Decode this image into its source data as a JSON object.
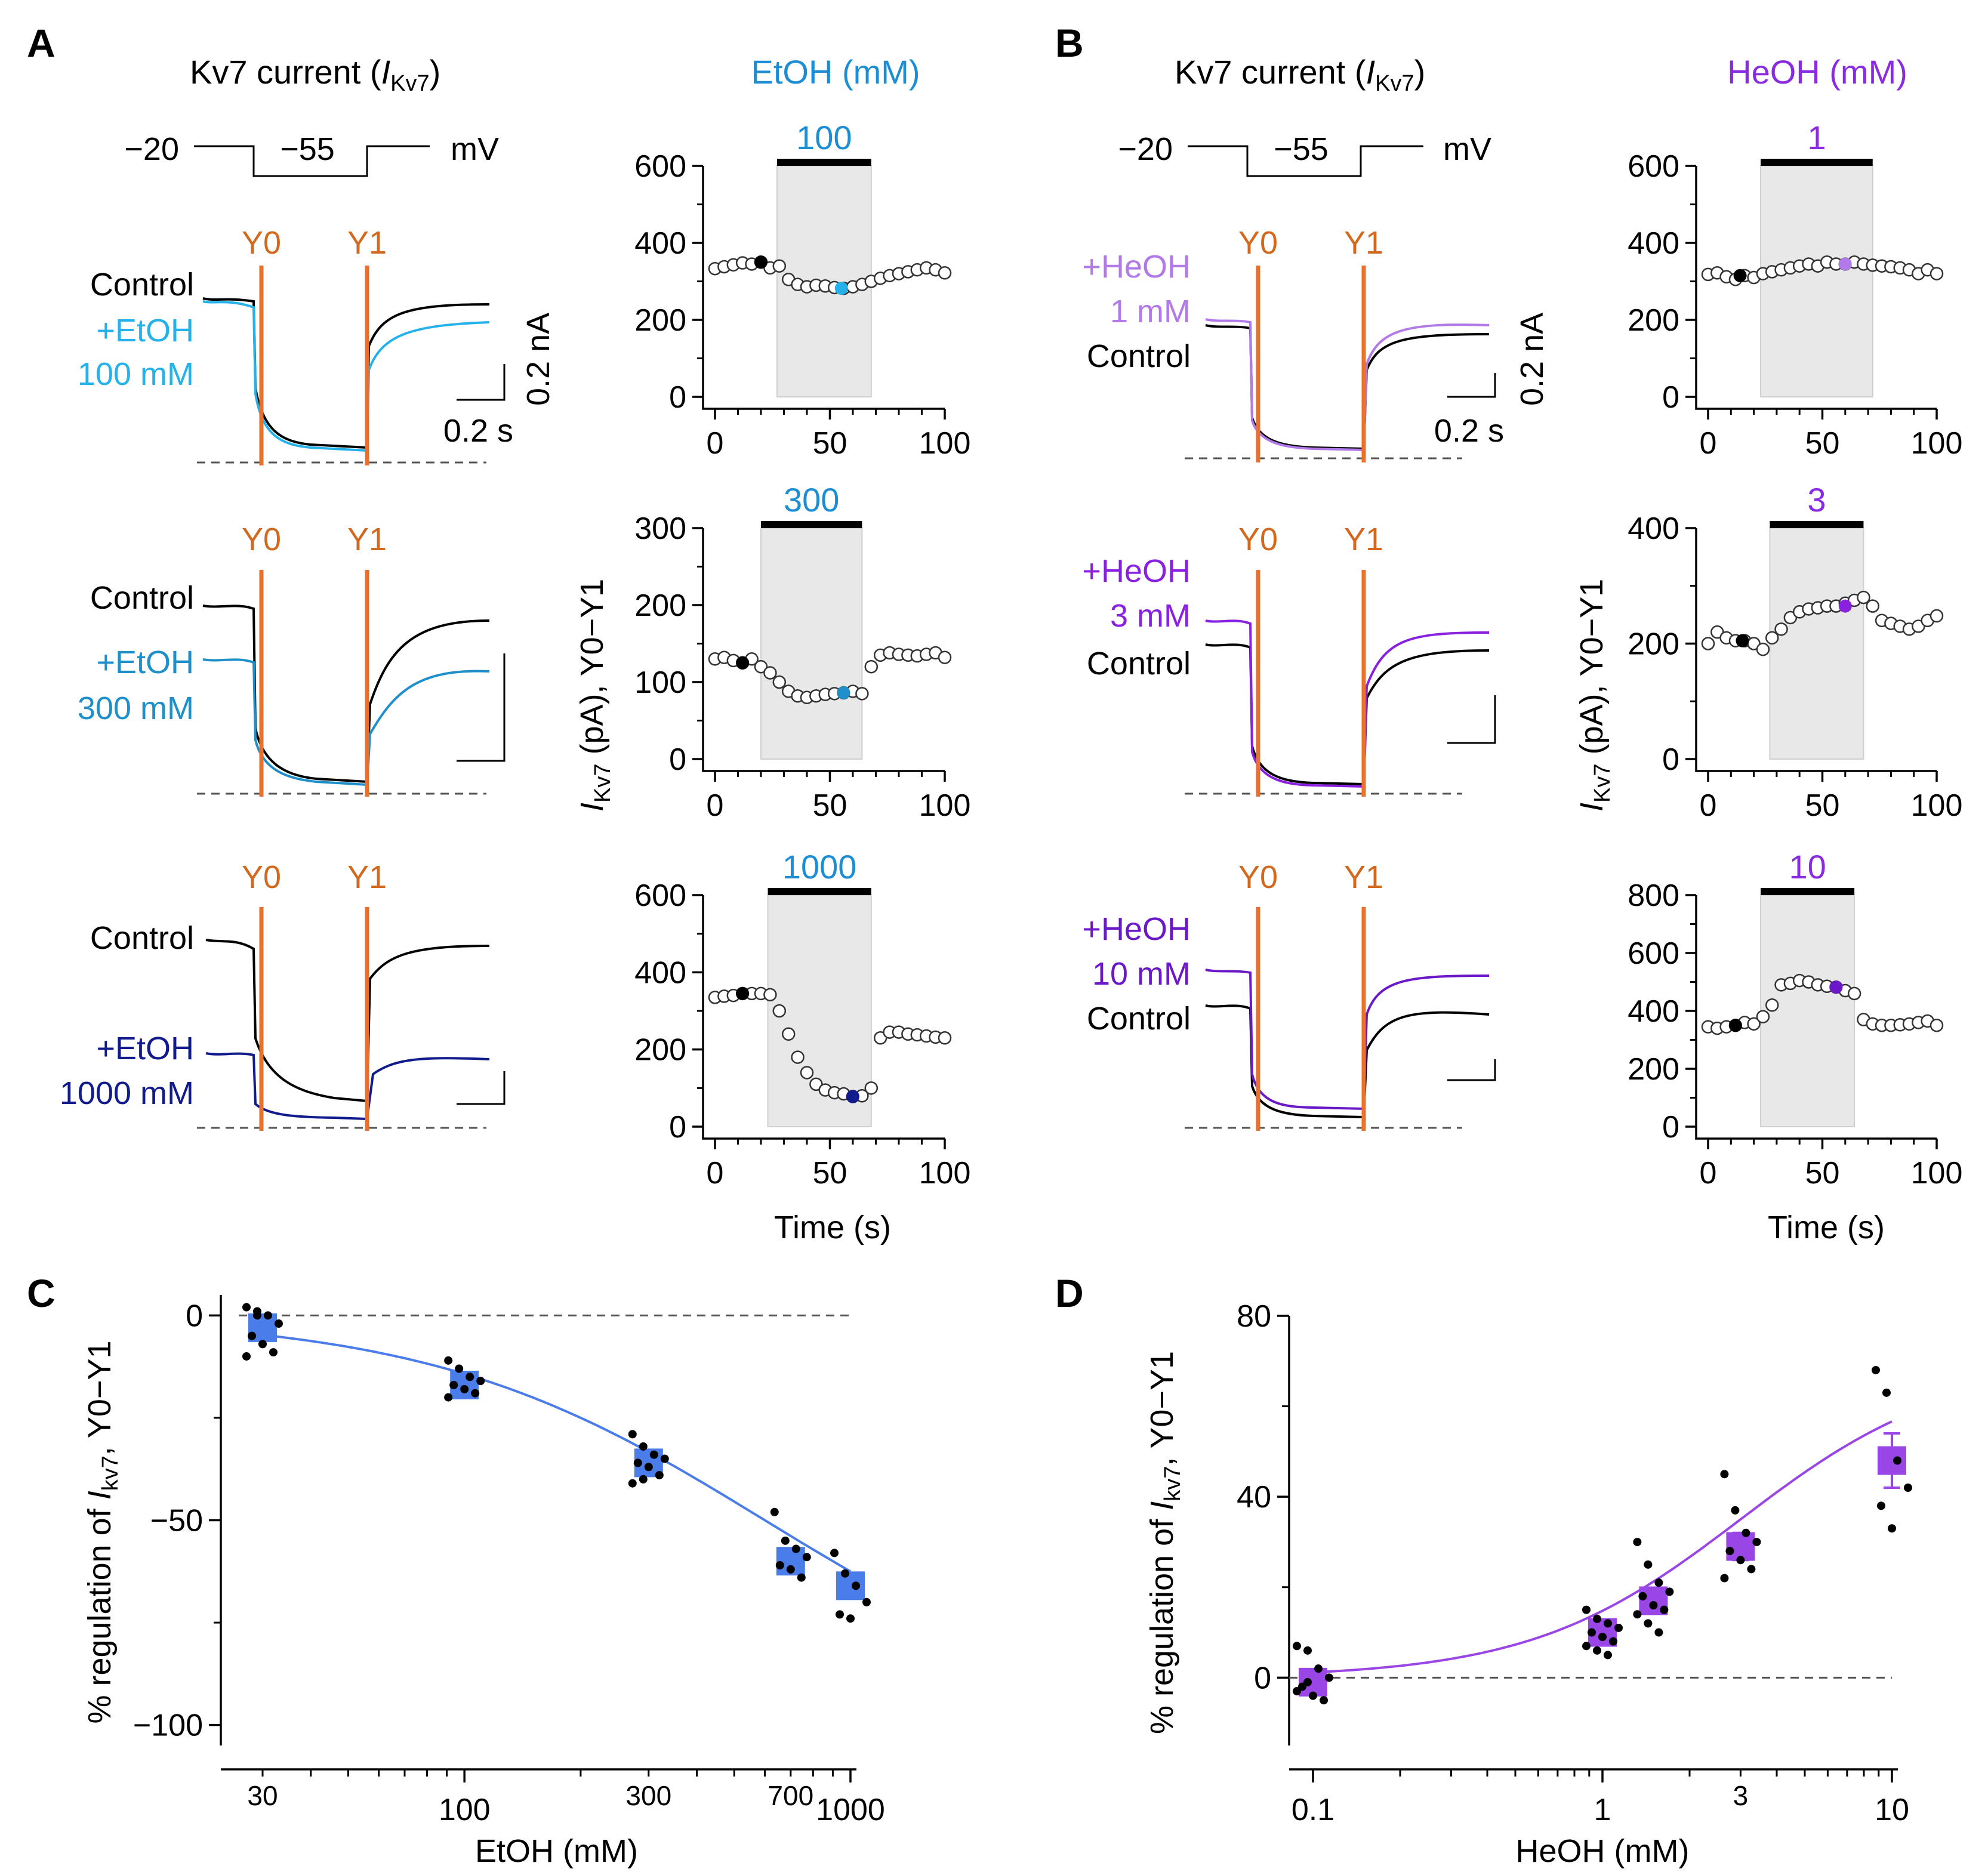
{
  "colors": {
    "black": "#000000",
    "orange": "#e8712e",
    "etoh100": "#25b1ea",
    "etoh300": "#1e8fc9",
    "etoh1000": "#111b8c",
    "etoh_title": "#1e8ed4",
    "heoh1": "#b27ae8",
    "heoh3": "#8a21e0",
    "heoh10": "#6b18c8",
    "heoh_title": "#8a2be2",
    "fitC": "#4a7cea",
    "fitD": "#9a46e6",
    "gray_fill": "#e8e8e8"
  },
  "panels": {
    "A": {
      "letter": "A",
      "trace_title_prefix": "Kv7 current (",
      "trace_title_I": "I",
      "trace_title_sub": "Kv7",
      "trace_title_suffix": ")",
      "drug_title": "EtOH (mM)",
      "protocol": {
        "left": "−20",
        "mid": "−55",
        "unit": "mV"
      },
      "cursor_labels": {
        "y0": "Y0",
        "y1": "Y1"
      },
      "scale": {
        "y": "0.2 nA",
        "x": "0.2 s"
      },
      "y_axis_label_I": "I",
      "y_axis_label_sub": "Kv7",
      "y_axis_label_rest": " (pA),  Y0−Y1",
      "x_axis_label": "Time (s)",
      "rows": [
        {
          "drug_line1": "+EtOH",
          "drug_line2": "100 mM",
          "control": "Control",
          "conc": "100",
          "ymax": 600,
          "yticks": [
            "0",
            "200",
            "400",
            "600"
          ],
          "xticks": [
            "0",
            "50",
            "100"
          ]
        },
        {
          "drug_line1": "+EtOH",
          "drug_line2": "300 mM",
          "control": "Control",
          "conc": "300",
          "ymax": 300,
          "yticks": [
            "0",
            "100",
            "200",
            "300"
          ],
          "xticks": [
            "0",
            "50",
            "100"
          ]
        },
        {
          "drug_line1": "+EtOH",
          "drug_line2": "1000 mM",
          "control": "Control",
          "conc": "1000",
          "ymax": 600,
          "yticks": [
            "0",
            "200",
            "400",
            "600"
          ],
          "xticks": [
            "0",
            "50",
            "100"
          ]
        }
      ],
      "timecourse_data": [
        {
          "bar_s": [
            27,
            68
          ],
          "control_point": [
            20,
            350
          ],
          "drug_point": [
            55,
            282
          ],
          "t": [
            0,
            4,
            8,
            12,
            16,
            20,
            24,
            28,
            32,
            36,
            40,
            44,
            48,
            52,
            56,
            60,
            64,
            68,
            72,
            76,
            80,
            84,
            88,
            92,
            96,
            100
          ],
          "v": [
            333,
            338,
            343,
            348,
            345,
            350,
            335,
            340,
            305,
            292,
            286,
            290,
            288,
            284,
            282,
            286,
            292,
            300,
            308,
            315,
            320,
            325,
            330,
            335,
            330,
            322
          ]
        },
        {
          "bar_s": [
            20,
            64
          ],
          "control_point": [
            12,
            125
          ],
          "drug_point": [
            56,
            86
          ],
          "t": [
            0,
            4,
            8,
            12,
            16,
            20,
            24,
            28,
            32,
            36,
            40,
            44,
            48,
            52,
            56,
            60,
            64,
            68,
            72,
            76,
            80,
            84,
            88,
            92,
            96,
            100
          ],
          "v": [
            130,
            132,
            128,
            125,
            130,
            120,
            112,
            100,
            88,
            82,
            80,
            82,
            84,
            85,
            86,
            88,
            85,
            120,
            135,
            138,
            136,
            135,
            134,
            136,
            138,
            132
          ]
        },
        {
          "bar_s": [
            23,
            68
          ],
          "control_point": [
            12,
            345
          ],
          "drug_point": [
            60,
            78
          ],
          "t": [
            0,
            4,
            8,
            12,
            16,
            20,
            24,
            28,
            32,
            36,
            40,
            44,
            48,
            52,
            56,
            60,
            64,
            68,
            72,
            76,
            80,
            84,
            88,
            92,
            96,
            100
          ],
          "v": [
            335,
            338,
            340,
            345,
            345,
            345,
            342,
            300,
            240,
            180,
            140,
            110,
            95,
            88,
            85,
            78,
            80,
            100,
            230,
            245,
            245,
            240,
            238,
            235,
            232,
            230
          ]
        }
      ]
    },
    "B": {
      "letter": "B",
      "trace_title_prefix": "Kv7 current (",
      "trace_title_I": "I",
      "trace_title_sub": "Kv7",
      "trace_title_suffix": ")",
      "drug_title": "HeOH (mM)",
      "protocol": {
        "left": "−20",
        "mid": "−55",
        "unit": "mV"
      },
      "cursor_labels": {
        "y0": "Y0",
        "y1": "Y1"
      },
      "scale": {
        "y": "0.2 nA",
        "x": "0.2 s"
      },
      "y_axis_label_I": "I",
      "y_axis_label_sub": "Kv7",
      "y_axis_label_rest": " (pA),  Y0−Y1",
      "x_axis_label": "Time (s)",
      "rows": [
        {
          "drug_line1": "+HeOH",
          "drug_line2": "1 mM",
          "control": "Control",
          "conc": "1",
          "ymax": 600,
          "yticks": [
            "0",
            "200",
            "400",
            "600"
          ],
          "xticks": [
            "0",
            "50",
            "100"
          ]
        },
        {
          "drug_line1": "+HeOH",
          "drug_line2": "3 mM",
          "control": "Control",
          "conc": "3",
          "ymax": 400,
          "yticks": [
            "0",
            "200",
            "400"
          ],
          "xticks": [
            "0",
            "50",
            "100"
          ]
        },
        {
          "drug_line1": "+HeOH",
          "drug_line2": "10 mM",
          "control": "Control",
          "conc": "10",
          "ymax": 800,
          "yticks": [
            "0",
            "200",
            "400",
            "600",
            "800"
          ],
          "xticks": [
            "0",
            "50",
            "100"
          ]
        }
      ],
      "timecourse_data": [
        {
          "bar_s": [
            23,
            72
          ],
          "control_point": [
            14,
            315
          ],
          "drug_point": [
            60,
            345
          ],
          "t": [
            0,
            4,
            8,
            12,
            16,
            20,
            24,
            28,
            32,
            36,
            40,
            44,
            48,
            52,
            56,
            60,
            64,
            68,
            72,
            76,
            80,
            84,
            88,
            92,
            96,
            100
          ],
          "v": [
            318,
            322,
            312,
            305,
            315,
            310,
            320,
            325,
            330,
            335,
            340,
            345,
            340,
            350,
            345,
            345,
            350,
            345,
            342,
            340,
            338,
            335,
            330,
            320,
            330,
            320
          ]
        },
        {
          "bar_s": [
            27,
            68
          ],
          "control_point": [
            15,
            205
          ],
          "drug_point": [
            60,
            265
          ],
          "t": [
            0,
            4,
            8,
            12,
            16,
            20,
            24,
            28,
            32,
            36,
            40,
            44,
            48,
            52,
            56,
            60,
            64,
            68,
            72,
            76,
            80,
            84,
            88,
            92,
            96,
            100
          ],
          "v": [
            200,
            220,
            210,
            205,
            205,
            200,
            190,
            210,
            225,
            245,
            255,
            260,
            262,
            265,
            265,
            270,
            275,
            280,
            265,
            240,
            235,
            230,
            225,
            230,
            240,
            248
          ]
        },
        {
          "bar_s": [
            23,
            64
          ],
          "control_point": [
            12,
            350
          ],
          "drug_point": [
            56,
            482
          ],
          "t": [
            0,
            4,
            8,
            12,
            16,
            20,
            24,
            28,
            32,
            36,
            40,
            44,
            48,
            52,
            56,
            60,
            64,
            68,
            72,
            76,
            80,
            84,
            88,
            92,
            96,
            100
          ],
          "v": [
            345,
            340,
            345,
            350,
            360,
            355,
            380,
            420,
            490,
            495,
            505,
            500,
            490,
            485,
            482,
            470,
            460,
            370,
            355,
            350,
            350,
            352,
            355,
            360,
            365,
            350
          ]
        }
      ]
    },
    "C": {
      "letter": "C"
    },
    "D": {
      "letter": "D"
    }
  },
  "chart_data": [
    {
      "type": "scatter",
      "id": "C",
      "title": "",
      "xlabel": "EtOH (mM)",
      "ylabel_pre": "% regulation of ",
      "ylabel_I": "I",
      "ylabel_sub": "kv7",
      "ylabel_post": ",  Y0−Y1",
      "xscale": "log",
      "xlim": [
        27,
        1000
      ],
      "ylim": [
        -105,
        5
      ],
      "xticks_major": [
        "100",
        "1000"
      ],
      "xticks_minor_labels": [
        "30",
        "300",
        "700"
      ],
      "yticks": [
        "0",
        "-50",
        "-100"
      ],
      "ytick_labels": [
        "0",
        "−50",
        "−100"
      ],
      "zero_line": true,
      "mean_points": [
        {
          "x": 30,
          "y": -3,
          "err": 2
        },
        {
          "x": 100,
          "y": -17,
          "err": 1.5
        },
        {
          "x": 300,
          "y": -36,
          "err": 1.5
        },
        {
          "x": 700,
          "y": -60,
          "err": 2
        },
        {
          "x": 1000,
          "y": -66,
          "err": 2
        }
      ],
      "individual_points": [
        {
          "x": 30,
          "y": [
            2,
            1,
            0,
            -2,
            -5,
            -7,
            -9,
            -10,
            0
          ]
        },
        {
          "x": 100,
          "y": [
            -11,
            -13,
            -15,
            -16,
            -17,
            -18,
            -19,
            -20
          ]
        },
        {
          "x": 300,
          "y": [
            -29,
            -32,
            -34,
            -35,
            -36,
            -37,
            -39,
            -41,
            -40
          ]
        },
        {
          "x": 700,
          "y": [
            -48,
            -55,
            -57,
            -59,
            -61,
            -62,
            -64
          ]
        },
        {
          "x": 1000,
          "y": [
            -58,
            -63,
            -66,
            -70,
            -73,
            -74
          ]
        }
      ],
      "fit": {
        "ymax": -100,
        "ec50": 600,
        "n": 1.0
      }
    },
    {
      "type": "scatter",
      "id": "D",
      "title": "",
      "xlabel": "HeOH (mM)",
      "ylabel_pre": "% regulation of ",
      "ylabel_I": "I",
      "ylabel_sub": "kv7",
      "ylabel_post": ",  Y0−Y1",
      "xscale": "log",
      "xlim": [
        0.085,
        13
      ],
      "ylim": [
        -15,
        80
      ],
      "xticks_major": [
        "0.1",
        "1",
        "10"
      ],
      "xticks_minor_labels": [
        "3"
      ],
      "yticks": [
        "0",
        "40",
        "80"
      ],
      "ytick_labels": [
        "0",
        "40",
        "80"
      ],
      "zero_line": true,
      "mean_points": [
        {
          "x": 0.1,
          "y": -1,
          "err": 2
        },
        {
          "x": 1,
          "y": 10,
          "err": 1.5
        },
        {
          "x": 1.5,
          "y": 17,
          "err": 2
        },
        {
          "x": 3,
          "y": 29,
          "err": 3
        },
        {
          "x": 10,
          "y": 48,
          "err": 6
        }
      ],
      "individual_points": [
        {
          "x": 0.1,
          "y": [
            7,
            6,
            2,
            0,
            -2,
            -4,
            -5,
            -3,
            -1
          ]
        },
        {
          "x": 1,
          "y": [
            15,
            13,
            12,
            11,
            10,
            9,
            8,
            7,
            6,
            5
          ]
        },
        {
          "x": 1.5,
          "y": [
            30,
            25,
            21,
            19,
            18,
            16,
            15,
            14,
            12,
            10
          ]
        },
        {
          "x": 3,
          "y": [
            45,
            37,
            32,
            30,
            28,
            26,
            24,
            22
          ]
        },
        {
          "x": 10,
          "y": [
            68,
            63,
            48,
            42,
            38,
            33
          ]
        }
      ],
      "fit": {
        "ymax": 70,
        "ec50": 3.0,
        "n": 1.2
      }
    }
  ]
}
